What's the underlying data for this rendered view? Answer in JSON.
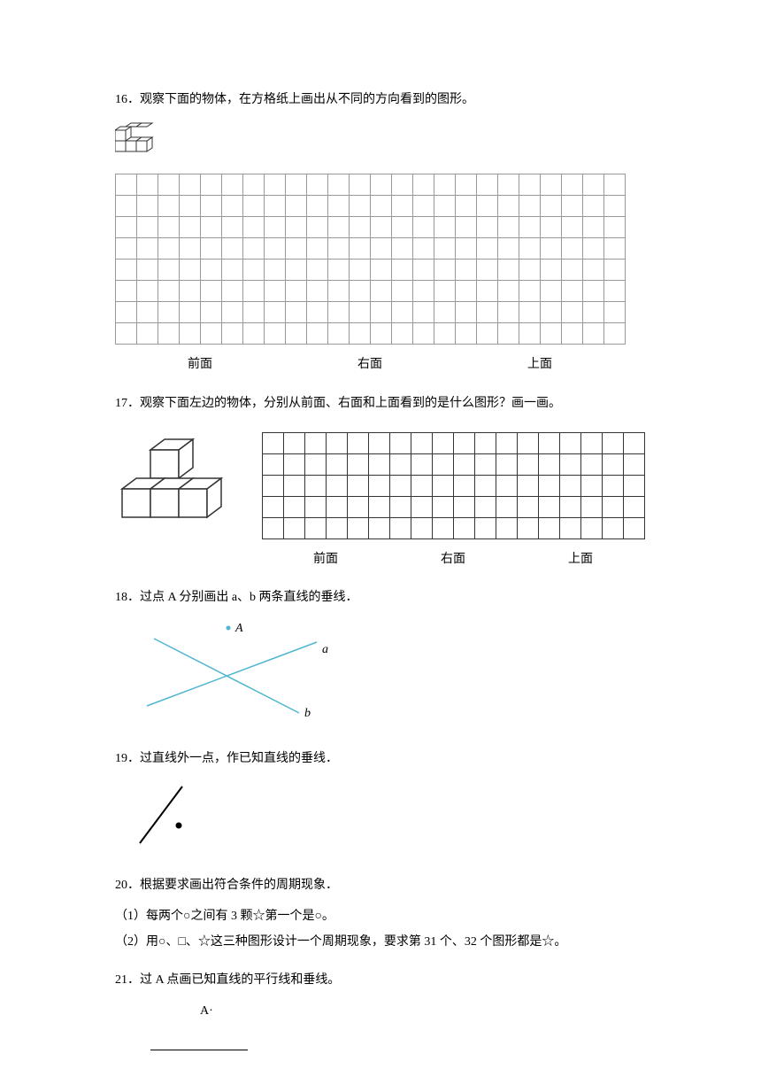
{
  "q16": {
    "text": "16．观察下面的物体，在方格纸上画出从不同的方向看到的图形。",
    "grid": {
      "rows": 8,
      "cols": 24,
      "cell_size": 24,
      "border_color": "#999999"
    },
    "labels": [
      "前面",
      "右面",
      "上面"
    ]
  },
  "q17": {
    "text": "17．观察下面左边的物体，分别从前面、右面和上面看到的是什么图形？画一画。",
    "grid": {
      "rows": 5,
      "cols": 18,
      "cell_size": 24,
      "border_color": "#333333"
    },
    "labels": [
      "前面",
      "右面",
      "上面"
    ]
  },
  "q18": {
    "text": "18．过点 A 分别画出 a、b 两条直线的垂线．",
    "lines": {
      "a": {
        "color": "#4fb6d1",
        "label": "a",
        "label_color": "#000000"
      },
      "b": {
        "color": "#4fb6d1",
        "label": "b",
        "label_color": "#000000"
      },
      "point_label": "A",
      "point_color": "#4fb6d1"
    }
  },
  "q19": {
    "text": "19．过直线外一点，作已知直线的垂线．",
    "line_color": "#000000",
    "point_color": "#000000"
  },
  "q20": {
    "text": "20．根据要求画出符合条件的周期现象．",
    "sub1": "（1）每两个○之间有 3 颗☆第一个是○。",
    "sub2": "（2）用○、□、☆这三种图形设计一个周期现象，要求第 31 个、32 个图形都是☆。"
  },
  "q21": {
    "text": "21．过 A 点画已知直线的平行线和垂线。",
    "point_label": "A·"
  }
}
